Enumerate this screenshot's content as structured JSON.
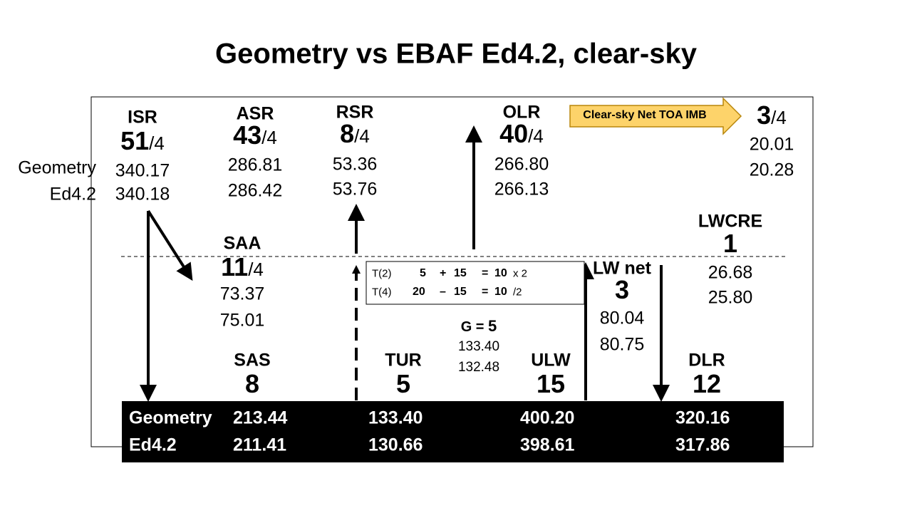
{
  "title": "Geometry vs EBAF Ed4.2, clear-sky",
  "row_labels": [
    "Geometry",
    "Ed4.2"
  ],
  "nodes": [
    {
      "label": "ISR",
      "big": "51",
      "suffix": "/4",
      "values": [
        "340.17",
        "340.18"
      ]
    },
    {
      "label": "ASR",
      "big": "43",
      "suffix": "/4",
      "values": [
        "286.81",
        "286.42"
      ]
    },
    {
      "label": "RSR",
      "big": "8",
      "suffix": "/4",
      "values": [
        "53.36",
        "53.76"
      ]
    },
    {
      "label": "OLR",
      "big": "40",
      "suffix": "/4",
      "values": [
        "266.80",
        "266.13"
      ]
    },
    {
      "label": "SAA",
      "big": "11",
      "suffix": "/4",
      "values": [
        "73.37",
        "75.01"
      ]
    },
    {
      "label": "LWCRE",
      "big": "1",
      "values": [
        "26.68",
        "25.80"
      ]
    },
    {
      "label": "LW net",
      "big": "3",
      "values": [
        "80.04",
        "80.75"
      ]
    },
    {
      "label": "G =",
      "big": "5",
      "values": [
        "133.40",
        "132.48"
      ]
    },
    {
      "label": "SAS",
      "big": "8"
    },
    {
      "label": "TUR",
      "big": "5"
    },
    {
      "label": "ULW",
      "big": "15"
    },
    {
      "label": "DLR",
      "big": "12"
    }
  ],
  "imbalance": {
    "label": "Clear-sky Net TOA IMB",
    "big": "3",
    "suffix": "/4",
    "values": [
      "20.01",
      "20.28"
    ]
  },
  "equations": [
    [
      "T(2)",
      "5",
      "+",
      "15",
      "=",
      "10",
      "x 2"
    ],
    [
      "T(4)",
      "20",
      "–",
      "15",
      "=",
      "10",
      "/2"
    ]
  ],
  "table": {
    "rows": [
      [
        "Geometry",
        "213.44",
        "133.40",
        "400.20",
        "320.16"
      ],
      [
        "Ed4.2",
        "211.41",
        "130.66",
        "398.61",
        "317.86"
      ]
    ]
  }
}
